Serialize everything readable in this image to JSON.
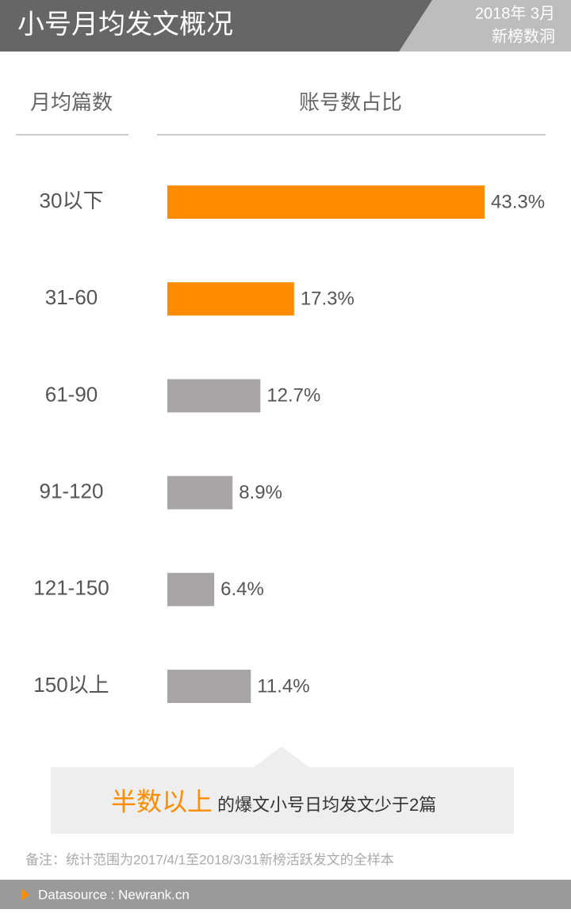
{
  "chart_data": {
    "type": "bar",
    "orientation": "horizontal",
    "title": "小号月均发文概况",
    "date": "2018年 3月",
    "brand": "新榜数洞",
    "category_header": "月均篇数",
    "value_header": "账号数占比",
    "categories": [
      "30以下",
      "31-60",
      "61-90",
      "91-120",
      "121-150",
      "150以上"
    ],
    "values": [
      43.3,
      17.3,
      12.7,
      8.9,
      6.4,
      11.4
    ],
    "value_labels": [
      "43.3%",
      "17.3%",
      "12.7%",
      "8.9%",
      "6.4%",
      "11.4%"
    ],
    "colors": [
      "#ff8c00",
      "#ff8c00",
      "#a9a5a6",
      "#a9a5a6",
      "#a9a5a6",
      "#a9a5a6"
    ],
    "callout": {
      "highlight": "半数以上",
      "text": "的爆文小号日均发文少于2篇"
    },
    "note": "备注：统计范围为2017/4/1至2018/3/31新榜活跃发文的全样本",
    "source": "Datasource : Newrank.cn"
  }
}
